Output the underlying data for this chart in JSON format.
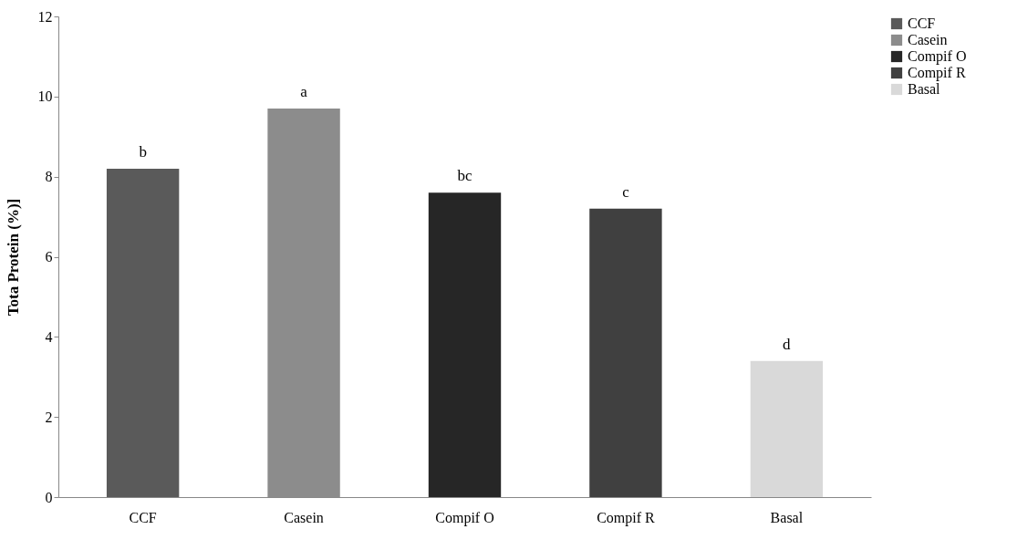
{
  "chart_data": {
    "type": "bar",
    "ylabel": "Tota Protein (%)]",
    "categories": [
      "CCF",
      "Casein",
      "Compif O",
      "Compif R",
      "Basal"
    ],
    "series": [
      {
        "name": "CCF",
        "color": "#5a5a5a",
        "values": [
          8.2,
          null,
          null,
          null,
          null
        ]
      },
      {
        "name": "Casein",
        "color": "#8c8c8c",
        "values": [
          null,
          9.7,
          null,
          null,
          null
        ]
      },
      {
        "name": "Compif O",
        "color": "#262626",
        "values": [
          null,
          null,
          7.6,
          null,
          null
        ]
      },
      {
        "name": "Compif R",
        "color": "#404040",
        "values": [
          null,
          null,
          null,
          7.2,
          null
        ]
      },
      {
        "name": "Basal",
        "color": "#d9d9d9",
        "values": [
          null,
          null,
          null,
          null,
          3.4
        ]
      }
    ],
    "ylim": [
      0,
      12
    ],
    "yticks": [
      0,
      2,
      4,
      6,
      8,
      10,
      12
    ],
    "grid": false,
    "legend": "right",
    "annotations": [
      {
        "text": "b",
        "x": "CCF",
        "y": 8.2
      },
      {
        "text": "a",
        "x": "Casein",
        "y": 9.7
      },
      {
        "text": "bc",
        "x": "Compif O",
        "y": 7.6
      },
      {
        "text": "c",
        "x": "Compif R",
        "y": 7.2
      },
      {
        "text": "d",
        "x": "Basal",
        "y": 3.4
      }
    ]
  }
}
